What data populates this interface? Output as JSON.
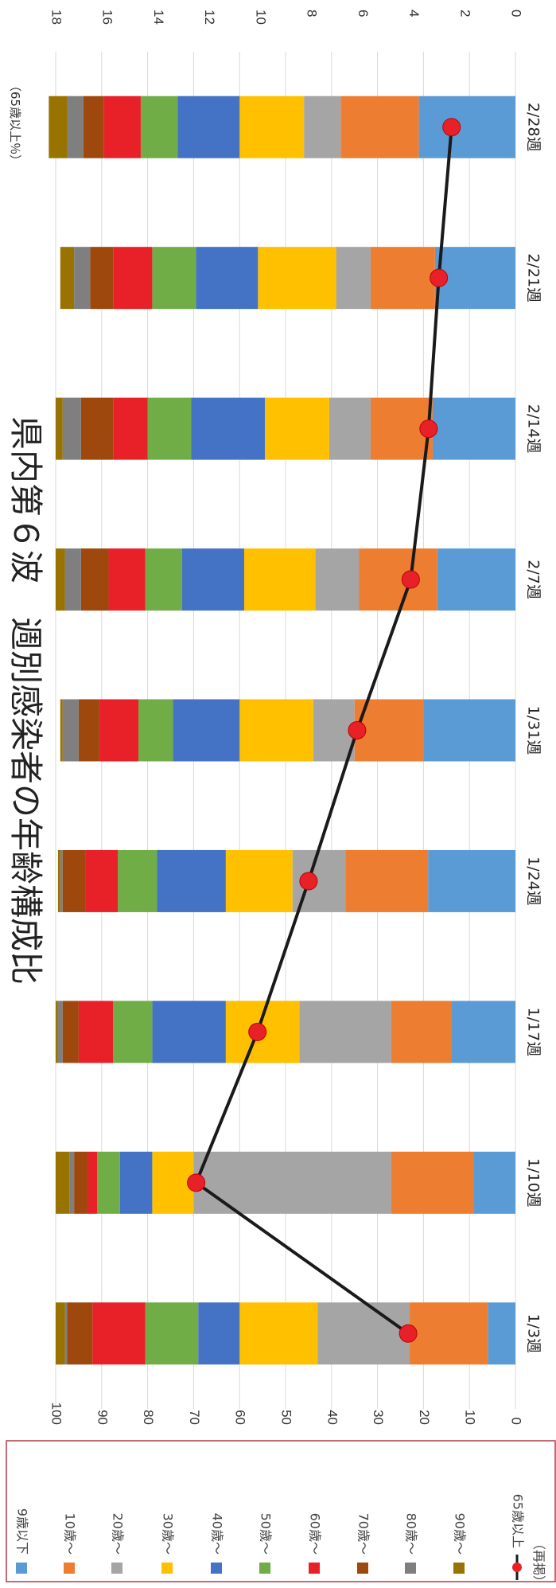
{
  "chart_data": {
    "type": "bar",
    "stacked": true,
    "orientation": "rotated-90-clockwise",
    "title": "県内第６波　週別感染者の年齢構成比",
    "categories": [
      "1/3週",
      "1/10週",
      "1/17週",
      "1/24週",
      "1/31週",
      "2/7週",
      "2/14週",
      "2/21週",
      "2/28週"
    ],
    "ylim": [
      0,
      100
    ],
    "yticks": [
      0,
      10,
      20,
      30,
      40,
      50,
      60,
      70,
      80,
      90,
      100
    ],
    "y2lim": [
      0,
      18
    ],
    "y2ticks": [
      0,
      2,
      4,
      6,
      8,
      10,
      12,
      14,
      16,
      18
    ],
    "y2label": "（65歳以上％）",
    "grid": true,
    "legend_position": "left",
    "series": [
      {
        "name": "9歳以下",
        "color": "#5B9BD5",
        "values": [
          6,
          9,
          14,
          19,
          20,
          17,
          18,
          17.5,
          21
        ]
      },
      {
        "name": "10歳～",
        "color": "#ED7D31",
        "values": [
          17,
          18,
          13,
          18,
          15,
          17,
          13.5,
          14,
          17
        ]
      },
      {
        "name": "20歳～",
        "color": "#A5A5A5",
        "values": [
          20,
          43,
          20,
          11.5,
          9,
          9.5,
          9,
          7.5,
          8
        ]
      },
      {
        "name": "30歳～",
        "color": "#FFC000",
        "values": [
          17,
          9,
          16,
          14.5,
          16,
          15.5,
          14,
          17,
          14
        ]
      },
      {
        "name": "40歳～",
        "color": "#4472C4",
        "values": [
          9,
          7,
          16,
          15,
          14.5,
          13.5,
          16,
          13.5,
          13.5
        ]
      },
      {
        "name": "50歳～",
        "color": "#70AD47",
        "values": [
          11.5,
          5,
          8.5,
          8.5,
          7.5,
          8,
          9.5,
          9.5,
          8
        ]
      },
      {
        "name": "60歳～",
        "color": "#E82128",
        "values": [
          11.5,
          2,
          7.5,
          7,
          8.5,
          8,
          7.5,
          8.5,
          8
        ]
      },
      {
        "name": "70歳～",
        "color": "#9E480E",
        "values": [
          5.5,
          3,
          3.5,
          5,
          4.5,
          6,
          7,
          5,
          4.5
        ]
      },
      {
        "name": "80歳～",
        "color": "#7F7F7F",
        "values": [
          0.5,
          1,
          1,
          0.5,
          3.5,
          3.5,
          4,
          3.5,
          3.5
        ]
      },
      {
        "name": "90歳～",
        "color": "#997300",
        "values": [
          2,
          3,
          0.5,
          0.5,
          0.5,
          2,
          1.5,
          3,
          4
        ]
      }
    ],
    "line_series": {
      "name": "65歳以上",
      "note": "（再掲）",
      "axis": "secondary",
      "color": "#1A1A1A",
      "marker_color": "#E82128",
      "values": [
        4.2,
        12.5,
        10.1,
        8.1,
        6.2,
        4.1,
        3.4,
        3.0,
        2.5
      ]
    }
  }
}
